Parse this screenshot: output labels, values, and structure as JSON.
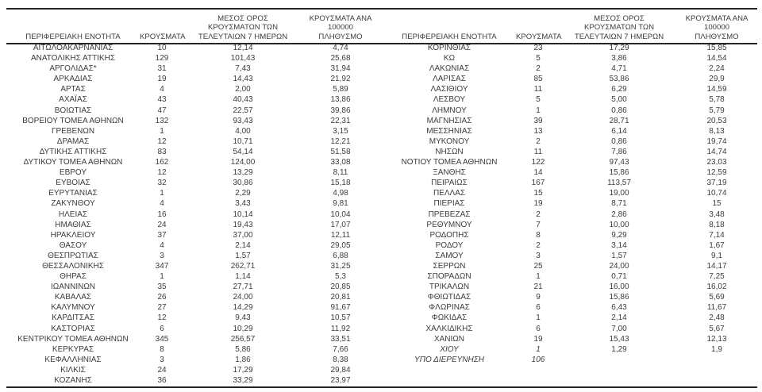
{
  "colors": {
    "text": "#3c3c3c",
    "rule": "#262626",
    "background": "#ffffff"
  },
  "headers_display": {
    "region": "ΠΕΡΙΦΕΡΕΙΑΚΗ ΕΝΟΤΗΤΑ",
    "cases": "ΚΡΟΥΣΜΑΤΑ",
    "avg7": "ΜΕΣΟΣ ΟΡΟΣ\nΚΡΟΥΣΜΑΤΩΝ ΤΩΝ\nΤΕΛΕΥΤΑΙΩΝ 7 ΗΜΕΡΩΝ",
    "per100k": "ΚΡΟΥΣΜΑΤΑ ΑΝΑ 100000\nΠΛΗΘΥΣΜΟ"
  },
  "chart_data": [
    {
      "type": "table",
      "columns": [
        "ΠΕΡΙΦΕΡΕΙΑΚΗ ΕΝΟΤΗΤΑ",
        "ΚΡΟΥΣΜΑΤΑ",
        "ΜΕΣΟΣ ΟΡΟΣ ΚΡΟΥΣΜΑΤΩΝ ΤΩΝ ΤΕΛΕΥΤΑΙΩΝ 7 ΗΜΕΡΩΝ",
        "ΚΡΟΥΣΜΑΤΑ ΑΝΑ 100000 ΠΛΗΘΥΣΜΟ"
      ],
      "italic_rows": [],
      "rows": [
        [
          "ΑΙΤΩΛΟΑΚΑΡΝΑΝΙΑΣ",
          "10",
          "12,14",
          "4,74"
        ],
        [
          "ΑΝΑΤΟΛΙΚΗΣ ΑΤΤΙΚΗΣ",
          "129",
          "101,43",
          "25,68"
        ],
        [
          "ΑΡΓΟΛΙΔΑΣ*",
          "31",
          "7,43",
          "31,94"
        ],
        [
          "ΑΡΚΑΔΙΑΣ",
          "19",
          "14,43",
          "21,92"
        ],
        [
          "ΑΡΤΑΣ",
          "4",
          "2,00",
          "5,89"
        ],
        [
          "ΑΧΑΪΑΣ",
          "43",
          "40,43",
          "13,86"
        ],
        [
          "ΒΟΙΩΤΙΑΣ",
          "47",
          "22,57",
          "39,86"
        ],
        [
          "ΒΟΡΕΙΟΥ ΤΟΜΕΑ ΑΘΗΝΩΝ",
          "132",
          "93,43",
          "22,31"
        ],
        [
          "ΓΡΕΒΕΝΩΝ",
          "1",
          "4,00",
          "3,15"
        ],
        [
          "ΔΡΑΜΑΣ",
          "12",
          "10,71",
          "12,21"
        ],
        [
          "ΔΥΤΙΚΗΣ ΑΤΤΙΚΗΣ",
          "83",
          "54,14",
          "51,58"
        ],
        [
          "ΔΥΤΙΚΟΥ ΤΟΜΕΑ ΑΘΗΝΩΝ",
          "162",
          "124,00",
          "33,08"
        ],
        [
          "ΕΒΡΟΥ",
          "12",
          "13,29",
          "8,11"
        ],
        [
          "ΕΥΒΟΙΑΣ",
          "32",
          "30,86",
          "15,18"
        ],
        [
          "ΕΥΡΥΤΑΝΙΑΣ",
          "1",
          "2,29",
          "4,98"
        ],
        [
          "ΖΑΚΥΝΘΟΥ",
          "4",
          "3,43",
          "9,81"
        ],
        [
          "ΗΛΕΙΑΣ",
          "16",
          "10,14",
          "10,04"
        ],
        [
          "ΗΜΑΘΙΑΣ",
          "24",
          "19,43",
          "17,07"
        ],
        [
          "ΗΡΑΚΛΕΙΟΥ",
          "37",
          "37,00",
          "12,11"
        ],
        [
          "ΘΑΣΟΥ",
          "4",
          "2,14",
          "29,05"
        ],
        [
          "ΘΕΣΠΡΩΤΙΑΣ",
          "3",
          "1,57",
          "6,88"
        ],
        [
          "ΘΕΣΣΑΛΟΝΙΚΗΣ",
          "347",
          "262,71",
          "31,25"
        ],
        [
          "ΘΗΡΑΣ",
          "1",
          "1,14",
          "5,3"
        ],
        [
          "ΙΩΑΝΝΙΝΩΝ",
          "35",
          "27,71",
          "20,85"
        ],
        [
          "ΚΑΒΑΛΑΣ",
          "26",
          "24,00",
          "20,81"
        ],
        [
          "ΚΑΛΥΜΝΟΥ",
          "27",
          "14,29",
          "91,67"
        ],
        [
          "ΚΑΡΔΙΤΣΑΣ",
          "12",
          "9,43",
          "10,57"
        ],
        [
          "ΚΑΣΤΟΡΙΑΣ",
          "6",
          "10,29",
          "11,92"
        ],
        [
          "ΚΕΝΤΡΙΚΟΥ ΤΟΜΕΑ ΑΘΗΝΩΝ",
          "345",
          "256,57",
          "33,51"
        ],
        [
          "ΚΕΡΚΥΡΑΣ",
          "8",
          "5,86",
          "7,66"
        ],
        [
          "ΚΕΦΑΛΛΗΝΙΑΣ",
          "3",
          "1,86",
          "8,38"
        ],
        [
          "ΚΙΛΚΙΣ",
          "24",
          "17,29",
          "29,84"
        ],
        [
          "ΚΟΖΑΝΗΣ",
          "36",
          "33,29",
          "23,97"
        ]
      ]
    },
    {
      "type": "table",
      "columns": [
        "ΠΕΡΙΦΕΡΕΙΑΚΗ ΕΝΟΤΗΤΑ",
        "ΚΡΟΥΣΜΑΤΑ",
        "ΜΕΣΟΣ ΟΡΟΣ ΚΡΟΥΣΜΑΤΩΝ ΤΩΝ ΤΕΛΕΥΤΑΙΩΝ 7 ΗΜΕΡΩΝ",
        "ΚΡΟΥΣΜΑΤΑ ΑΝΑ 100000 ΠΛΗΘΥΣΜΟ"
      ],
      "italic_rows": [
        "ΧΙΟΥ",
        "ΥΠΟ ΔΙΕΡΕΥΝΗΣΗ"
      ],
      "rows": [
        [
          "ΚΟΡΙΝΘΙΑΣ",
          "23",
          "17,29",
          "15,85"
        ],
        [
          "ΚΩ",
          "5",
          "3,86",
          "14,54"
        ],
        [
          "ΛΑΚΩΝΙΑΣ",
          "2",
          "4,71",
          "2,24"
        ],
        [
          "ΛΑΡΙΣΑΣ",
          "85",
          "53,86",
          "29,9"
        ],
        [
          "ΛΑΣΙΘΙΟΥ",
          "11",
          "6,29",
          "14,59"
        ],
        [
          "ΛΕΣΒΟΥ",
          "5",
          "5,00",
          "5,78"
        ],
        [
          "ΛΗΜΝΟΥ",
          "1",
          "0,86",
          "5,79"
        ],
        [
          "ΜΑΓΝΗΣΙΑΣ",
          "39",
          "28,71",
          "20,53"
        ],
        [
          "ΜΕΣΣΗΝΙΑΣ",
          "13",
          "6,14",
          "8,13"
        ],
        [
          "ΜΥΚΟΝΟΥ",
          "2",
          "0,86",
          "19,74"
        ],
        [
          "ΝΗΣΩΝ",
          "11",
          "7,86",
          "14,74"
        ],
        [
          "ΝΟΤΙΟΥ ΤΟΜΕΑ ΑΘΗΝΩΝ",
          "122",
          "97,43",
          "23,03"
        ],
        [
          "ΞΑΝΘΗΣ",
          "14",
          "15,86",
          "12,59"
        ],
        [
          "ΠΕΙΡΑΙΩΣ",
          "167",
          "113,57",
          "37,19"
        ],
        [
          "ΠΕΛΛΑΣ",
          "15",
          "19,00",
          "10,74"
        ],
        [
          "ΠΙΕΡΙΑΣ",
          "19",
          "8,71",
          "15"
        ],
        [
          "ΠΡΕΒΕΖΑΣ",
          "2",
          "2,86",
          "3,48"
        ],
        [
          "ΡΕΘΥΜΝΟΥ",
          "7",
          "10,00",
          "8,18"
        ],
        [
          "ΡΟΔΟΠΗΣ",
          "8",
          "9,29",
          "7,14"
        ],
        [
          "ΡΟΔΟΥ",
          "2",
          "3,14",
          "1,67"
        ],
        [
          "ΣΑΜΟΥ",
          "3",
          "1,57",
          "9,1"
        ],
        [
          "ΣΕΡΡΩΝ",
          "25",
          "24,00",
          "14,17"
        ],
        [
          "ΣΠΟΡΑΔΩΝ",
          "1",
          "0,71",
          "7,25"
        ],
        [
          "ΤΡΙΚΑΛΩΝ",
          "21",
          "16,00",
          "16,02"
        ],
        [
          "ΦΘΙΩΤΙΔΑΣ",
          "9",
          "15,86",
          "5,69"
        ],
        [
          "ΦΛΩΡΙΝΑΣ",
          "6",
          "6,43",
          "11,67"
        ],
        [
          "ΦΩΚΙΔΑΣ",
          "1",
          "2,14",
          "2,48"
        ],
        [
          "ΧΑΛΚΙΔΙΚΗΣ",
          "6",
          "7,00",
          "5,67"
        ],
        [
          "ΧΑΝΙΩΝ",
          "19",
          "15,43",
          "12,13"
        ],
        [
          "ΧΙΟΥ",
          "1",
          "1,29",
          "1,9"
        ],
        [
          "ΥΠΟ ΔΙΕΡΕΥΝΗΣΗ",
          "106",
          "",
          ""
        ]
      ]
    }
  ]
}
